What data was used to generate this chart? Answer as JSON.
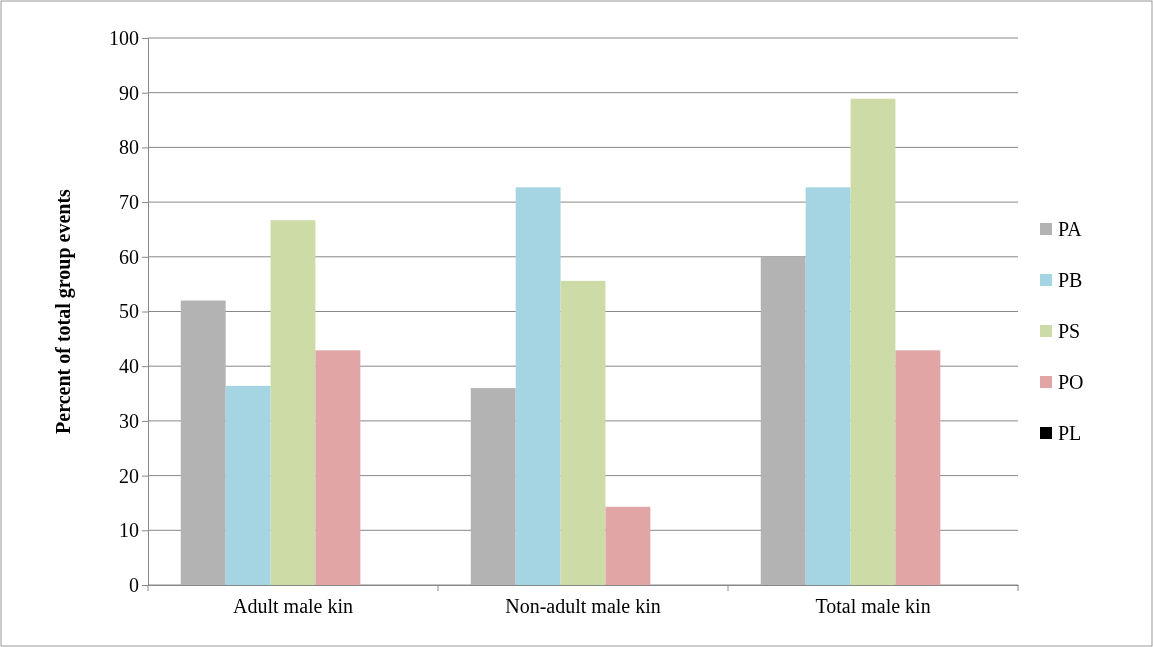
{
  "chart_data": {
    "type": "bar",
    "ylabel": "Percent of total group events",
    "categories": [
      "Adult male kin",
      "Non-adult male kin",
      "Total male kin"
    ],
    "series": [
      {
        "name": "PA",
        "color": "#b3b3b3",
        "values": [
          52,
          36,
          60
        ]
      },
      {
        "name": "PB",
        "color": "#a5d5e2",
        "values": [
          36.4,
          72.7,
          72.7
        ]
      },
      {
        "name": "PS",
        "color": "#cddca7",
        "values": [
          66.7,
          55.6,
          88.9
        ]
      },
      {
        "name": "PO",
        "color": "#e2a5a5",
        "values": [
          42.9,
          14.3,
          42.9
        ]
      },
      {
        "name": "PL",
        "color": "#000000",
        "values": [
          0,
          0,
          0
        ]
      }
    ],
    "ylim": [
      0,
      100
    ],
    "yticks": [
      0,
      10,
      20,
      30,
      40,
      50,
      60,
      70,
      80,
      90,
      100
    ],
    "grid": "y",
    "legend": "right"
  }
}
